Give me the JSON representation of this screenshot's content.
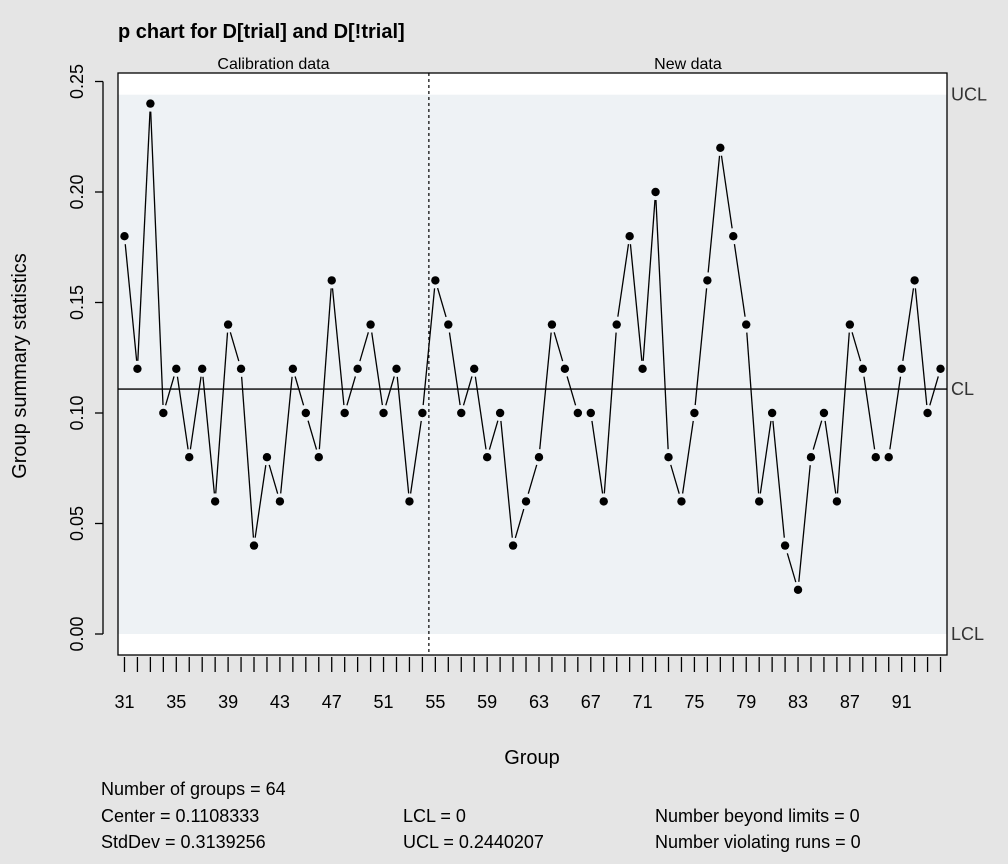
{
  "chart_data": {
    "type": "line",
    "title": "p chart for D[trial] and D[!trial]",
    "xlabel": "Group",
    "ylabel": "Group summary statistics",
    "x_ticks": [
      31,
      35,
      39,
      43,
      47,
      51,
      55,
      59,
      63,
      67,
      71,
      75,
      79,
      83,
      87,
      91
    ],
    "y_ticks": [
      "0.00",
      "0.05",
      "0.10",
      "0.15",
      "0.20",
      "0.25"
    ],
    "xlim": [
      30.5,
      94.5
    ],
    "ylim": [
      0,
      0.25
    ],
    "regions": [
      "Calibration data",
      "New data"
    ],
    "x": [
      31,
      32,
      33,
      34,
      35,
      36,
      37,
      38,
      39,
      40,
      41,
      42,
      43,
      44,
      45,
      46,
      47,
      48,
      49,
      50,
      51,
      52,
      53,
      54,
      55,
      56,
      57,
      58,
      59,
      60,
      61,
      62,
      63,
      64,
      65,
      66,
      67,
      68,
      69,
      70,
      71,
      72,
      73,
      74,
      75,
      76,
      77,
      78,
      79,
      80,
      81,
      82,
      83,
      84,
      85,
      86,
      87,
      88,
      89,
      90,
      91,
      92,
      93,
      94
    ],
    "values": [
      0.18,
      0.12,
      0.24,
      0.1,
      0.12,
      0.08,
      0.12,
      0.06,
      0.14,
      0.12,
      0.04,
      0.08,
      0.06,
      0.12,
      0.1,
      0.08,
      0.16,
      0.1,
      0.12,
      0.14,
      0.1,
      0.12,
      0.06,
      0.1,
      0.16,
      0.14,
      0.1,
      0.12,
      0.08,
      0.1,
      0.04,
      0.06,
      0.08,
      0.14,
      0.12,
      0.1,
      0.1,
      0.06,
      0.14,
      0.18,
      0.12,
      0.2,
      0.08,
      0.06,
      0.1,
      0.16,
      0.22,
      0.18,
      0.14,
      0.06,
      0.1,
      0.04,
      0.02,
      0.08,
      0.1,
      0.06,
      0.14,
      0.12,
      0.08,
      0.08,
      0.12,
      0.16,
      0.1,
      0.12
    ],
    "center_line": 0.1108333,
    "ucl": 0.2440207,
    "lcl": 0,
    "limit_labels": {
      "ucl": "UCL",
      "cl": "CL",
      "lcl": "LCL"
    },
    "grid": false,
    "colors": {
      "background": "#e5e5e5",
      "plot_area": "#ffffff",
      "limits_region": "#eef2f5",
      "points": "#000000"
    }
  },
  "summary": {
    "groups": "Number of groups = 64",
    "center": "Center = 0.1108333",
    "stddev": "StdDev = 0.3139256",
    "lcl": "LCL = 0",
    "ucl": "UCL = 0.2440207",
    "beyond": "Number beyond limits = 0",
    "violating": "Number violating runs = 0"
  }
}
